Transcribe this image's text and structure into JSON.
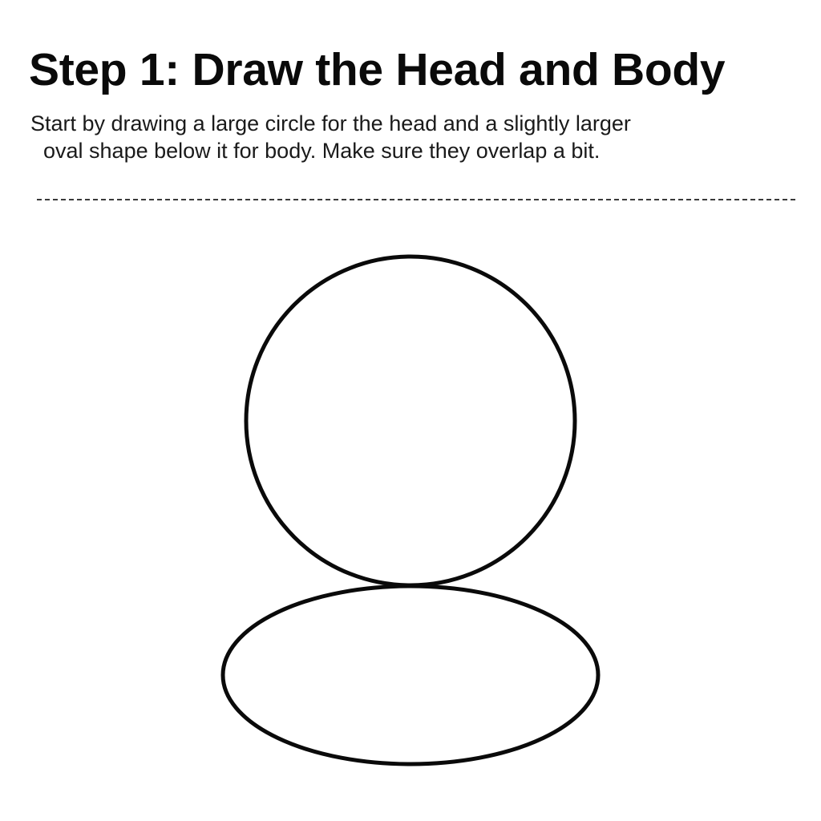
{
  "title": "Step 1: Draw the Head and Body",
  "description": {
    "line_1": "Start by drawing a large circle for the head and a slightly larger",
    "line_2": "oval shape below it for body. Make sure they overlap a bit."
  },
  "colors": {
    "stroke": "#0a0a0a",
    "background": "#ffffff",
    "divider": "#3a3a3a"
  }
}
